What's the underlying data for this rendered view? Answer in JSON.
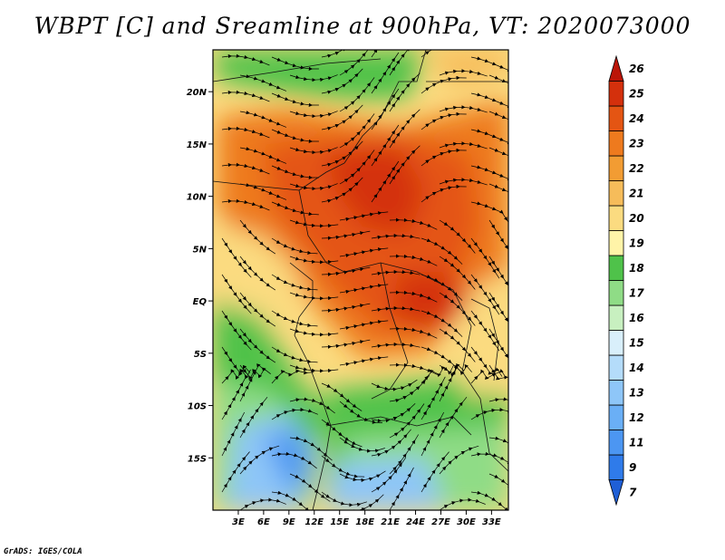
{
  "title": "WBPT [C] and Sreamline at 900hPa, VT: 2020073000",
  "credit": "GrADS: IGES/COLA",
  "map": {
    "lon_range": [
      0,
      35
    ],
    "lat_range": [
      -20,
      24
    ],
    "lat_ticks": [
      {
        "value": 20,
        "label": "20N"
      },
      {
        "value": 15,
        "label": "15N"
      },
      {
        "value": 10,
        "label": "10N"
      },
      {
        "value": 5,
        "label": "5N"
      },
      {
        "value": 0,
        "label": "EQ"
      },
      {
        "value": -5,
        "label": "5S"
      },
      {
        "value": -10,
        "label": "10S"
      },
      {
        "value": -15,
        "label": "15S"
      }
    ],
    "lon_ticks": [
      {
        "value": 3,
        "label": "3E"
      },
      {
        "value": 6,
        "label": "6E"
      },
      {
        "value": 9,
        "label": "9E"
      },
      {
        "value": 12,
        "label": "12E"
      },
      {
        "value": 15,
        "label": "15E"
      },
      {
        "value": 18,
        "label": "18E"
      },
      {
        "value": 21,
        "label": "21E"
      },
      {
        "value": 24,
        "label": "24E"
      },
      {
        "value": 27,
        "label": "27E"
      },
      {
        "value": 30,
        "label": "30E"
      },
      {
        "value": 33,
        "label": "33E"
      }
    ]
  },
  "colorbar": {
    "levels": [
      "7",
      "9",
      "11",
      "12",
      "13",
      "14",
      "15",
      "16",
      "17",
      "18",
      "19",
      "20",
      "21",
      "22",
      "23",
      "24",
      "25",
      "26"
    ],
    "colors": [
      "#1f5fd6",
      "#2f7bea",
      "#4c96f2",
      "#6aaff6",
      "#8ec6f8",
      "#b4dcfa",
      "#d9effb",
      "#c8f0c0",
      "#8fdc86",
      "#4fc24a",
      "#fff4a8",
      "#fbdb80",
      "#f6bc5a",
      "#f29c33",
      "#ee7a1e",
      "#e45513",
      "#d4300c",
      "#bb1508"
    ]
  }
}
